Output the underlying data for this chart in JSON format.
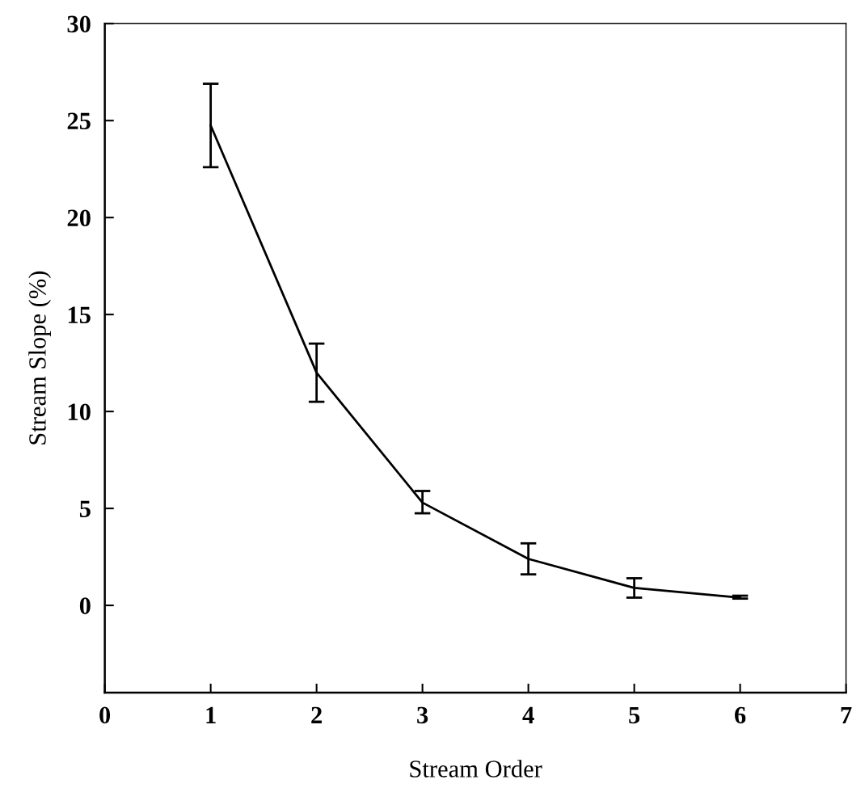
{
  "chart_data": {
    "type": "line",
    "xlabel": "Stream Order",
    "ylabel": "Stream Slope (%)",
    "x": [
      1,
      2,
      3,
      4,
      5,
      6
    ],
    "series": [
      {
        "color": "#000000",
        "values": [
          24.75,
          12.0,
          5.3,
          2.4,
          0.9,
          0.4
        ],
        "errors": [
          [
            22.6,
            26.9
          ],
          [
            10.5,
            13.5
          ],
          [
            4.75,
            5.9
          ],
          [
            1.6,
            3.2
          ],
          [
            0.4,
            1.4
          ],
          [
            0.35,
            0.5
          ]
        ]
      }
    ],
    "xlim": [
      0,
      7
    ],
    "xticks": [
      0,
      1,
      2,
      3,
      4,
      5,
      6,
      7
    ],
    "ylim": [
      -4.5,
      30
    ],
    "yticks": [
      0,
      5,
      10,
      15,
      20,
      25,
      30
    ],
    "grid": false,
    "legend": false,
    "marker": "none",
    "line_style": "solid"
  }
}
